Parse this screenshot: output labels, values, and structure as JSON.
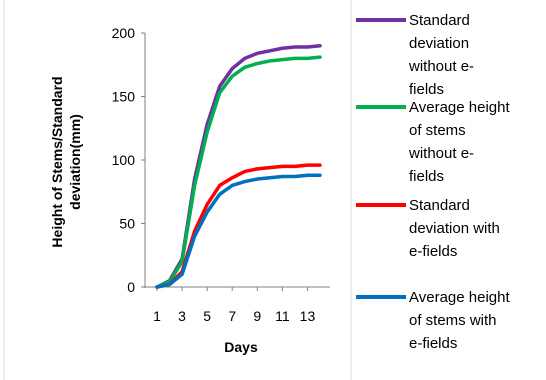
{
  "chart_data": {
    "type": "line",
    "xlabel": "Days",
    "ylabel_lines": [
      "Height of Stems/Standard",
      "deviation(mm)"
    ],
    "x": [
      1,
      2,
      3,
      4,
      5,
      6,
      7,
      8,
      9,
      10,
      11,
      12,
      13,
      14
    ],
    "x_tick_labels": [
      "1",
      "3",
      "5",
      "7",
      "9",
      "11",
      "13"
    ],
    "x_tick_values": [
      1,
      3,
      5,
      7,
      9,
      11,
      13
    ],
    "xlim": [
      1,
      14
    ],
    "ylim": [
      0,
      200
    ],
    "y_ticks": [
      0,
      50,
      100,
      150,
      200
    ],
    "y_tick_labels": [
      "0",
      "50",
      "100",
      "150",
      "200"
    ],
    "grid": false,
    "legend_position": "right",
    "series": [
      {
        "name": "Standard deviation without e-fields",
        "legend_lines": [
          "Standard",
          "deviation",
          "without e-",
          "fields"
        ],
        "color": "#7030A0",
        "values": [
          0,
          5,
          22,
          85,
          128,
          158,
          172,
          180,
          184,
          186,
          188,
          189,
          189,
          190
        ]
      },
      {
        "name": "Average height of stems without e-fields",
        "legend_lines": [
          "Average height",
          "of stems",
          "without e-",
          "fields"
        ],
        "color": "#00B050",
        "values": [
          0,
          4,
          20,
          80,
          122,
          153,
          166,
          173,
          176,
          178,
          179,
          180,
          180,
          181
        ]
      },
      {
        "name": "Standard deviation with e-fields",
        "legend_lines": [
          "Standard",
          "deviation with",
          "e-fields"
        ],
        "color": "#FF0000",
        "values": [
          0,
          2,
          12,
          44,
          65,
          80,
          86,
          91,
          93,
          94,
          95,
          95,
          96,
          96
        ]
      },
      {
        "name": "Average height of stems with e-fields",
        "legend_lines": [
          "Average height",
          "of stems with",
          "e-fields"
        ],
        "color": "#0070C0",
        "values": [
          0,
          2,
          10,
          40,
          59,
          73,
          80,
          83,
          85,
          86,
          87,
          87,
          88,
          88
        ]
      }
    ]
  }
}
